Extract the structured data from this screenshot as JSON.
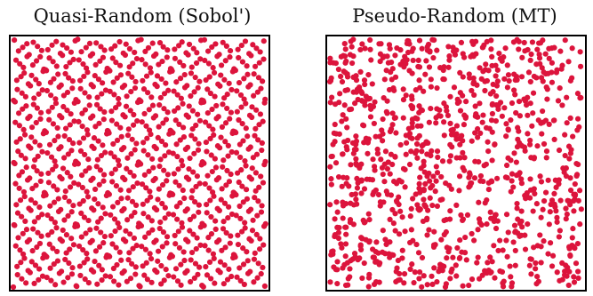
{
  "colors": {
    "point": "#dc143c",
    "frame": "#000000",
    "background": "#ffffff"
  },
  "chart_data": [
    {
      "type": "scatter",
      "title": "Quasi-Random (Sobol')",
      "generator": "sobol",
      "count": 1024,
      "xlim": [
        0,
        1
      ],
      "ylim": [
        0,
        1
      ],
      "xlabel": "",
      "ylabel": "",
      "grid": false,
      "legend": "none",
      "axis_ticks": false
    },
    {
      "type": "scatter",
      "title": "Pseudo-Random (MT)",
      "generator": "mersenne-twister",
      "count": 1024,
      "xlim": [
        0,
        1
      ],
      "ylim": [
        0,
        1
      ],
      "xlabel": "",
      "ylabel": "",
      "grid": false,
      "legend": "none",
      "axis_ticks": false
    }
  ]
}
